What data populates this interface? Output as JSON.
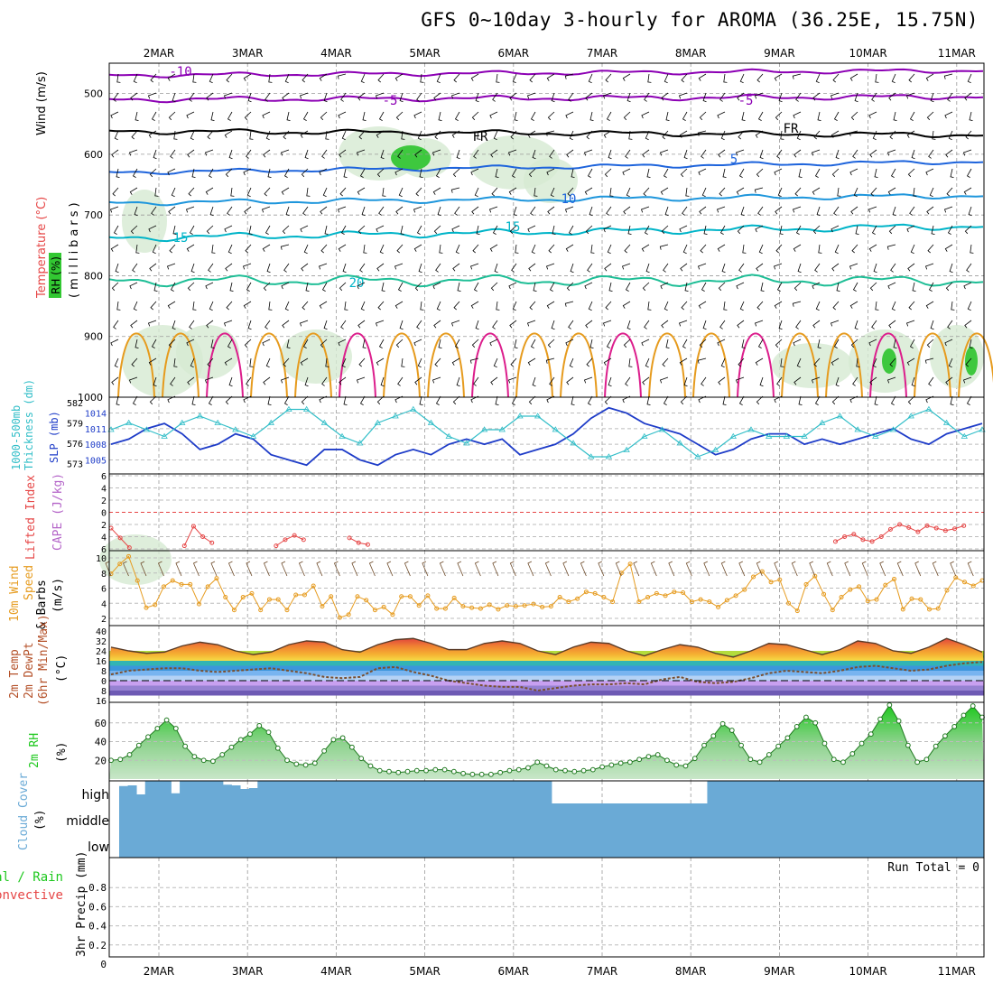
{
  "title": "GFS 0~10day 3-hourly for AROMA (36.25E, 15.75N)",
  "dates": [
    "2MAR",
    "3MAR",
    "4MAR",
    "5MAR",
    "6MAR",
    "7MAR",
    "8MAR",
    "9MAR",
    "10MAR",
    "11MAR"
  ],
  "colors": {
    "contour_temp": "#00b4c8",
    "contour_neg": "#8c00b4",
    "contour_warm": "#e69b1e",
    "slp": "#1e3cc8",
    "thickness": "#32bec8",
    "lifted_index": "#e64646",
    "wind_speed": "#e69b1e",
    "rh_fill": "#32c832",
    "cloud": "#6aaad6"
  },
  "panel_labels": {
    "wind": "Wind (m/s)",
    "temperature": "Temperature (°C)",
    "rh": "RH (%)",
    "millibars": "(millibars)",
    "slp": "SLP (mb)",
    "thickness_1": "1000-500mb",
    "thickness_2": "Thickness (dm)",
    "lifted_index": "Lifted Index",
    "cape": "CAPE (J/kg)",
    "wind10m_1": "10m Wind",
    "wind10m_2": "Speed",
    "wind10m_3": "& Barbs",
    "wind10m_unit": "(m/s)",
    "temp_1": "2m Temp",
    "temp_2": "2m DewPt",
    "temp_3": "(6hr Min/Max)",
    "temp_unit": "(°C)",
    "rh2m": "2m RH",
    "rh2m_unit": "(%)",
    "cloud": "Cloud Cover",
    "cloud_unit": "(%)",
    "precip_1": "Total / Rain",
    "precip_2": "Convective",
    "precip_3": "3hr Precip (mm)",
    "run_total": "Run Total = 0"
  },
  "cloud_levels": [
    "high",
    "middle",
    "low"
  ],
  "upper_air": {
    "pressure_ticks": [
      "500",
      "600",
      "700",
      "800",
      "900",
      "1000"
    ],
    "contour_labels": [
      {
        "text": "-10",
        "series": "neg"
      },
      {
        "text": "-5",
        "series": "neg"
      },
      {
        "text": "-5",
        "series": "neg"
      },
      {
        "text": "FR",
        "series": "frz"
      },
      {
        "text": "FR",
        "series": "frz"
      },
      {
        "text": "5",
        "series": "temp"
      },
      {
        "text": "10",
        "series": "temp"
      },
      {
        "text": "15",
        "series": "temp"
      },
      {
        "text": "15",
        "series": "temp"
      },
      {
        "text": "20",
        "series": "temp"
      }
    ]
  },
  "chart_data": [
    {
      "type": "line",
      "panel": "slp_thickness",
      "series": [
        {
          "name": "SLP (mb)",
          "unit": "mb",
          "values": [
            1008,
            1009,
            1011,
            1012,
            1010,
            1007,
            1008,
            1010,
            1009,
            1006,
            1005,
            1004,
            1007,
            1007,
            1005,
            1004,
            1006,
            1007,
            1006,
            1008,
            1009,
            1008,
            1009,
            1006,
            1007,
            1008,
            1010,
            1013,
            1015,
            1014,
            1012,
            1011,
            1010,
            1008,
            1006,
            1007,
            1009,
            1010,
            1010,
            1008,
            1009,
            1008,
            1009,
            1010,
            1011,
            1009,
            1008,
            1010,
            1011,
            1012
          ]
        },
        {
          "name": "1000-500mb Thickness (dm)",
          "unit": "dm",
          "values": [
            578,
            579,
            578,
            577,
            579,
            580,
            579,
            578,
            577,
            579,
            581,
            581,
            579,
            577,
            576,
            579,
            580,
            581,
            579,
            577,
            576,
            578,
            578,
            580,
            580,
            578,
            576,
            574,
            574,
            575,
            577,
            578,
            576,
            574,
            575,
            577,
            578,
            577,
            577,
            577,
            579,
            580,
            578,
            577,
            578,
            580,
            581,
            579,
            577,
            578
          ]
        }
      ],
      "y_ticks_slp": [
        "1014",
        "1011",
        "1008",
        "1005"
      ],
      "y_ticks_thickness": [
        "582",
        "579",
        "576",
        "573"
      ]
    },
    {
      "type": "line",
      "panel": "lifted_index_cape",
      "y_ticks": [
        "6",
        "4",
        "2",
        "0",
        "-2",
        "-4",
        "-6"
      ],
      "series": [
        {
          "name": "Lifted Index",
          "values": [
            [
              0,
              -2.6
            ],
            [
              1,
              -4.2
            ],
            [
              2,
              -5.8
            ],
            [
              8,
              -5.5
            ],
            [
              9,
              -2.3
            ],
            [
              10,
              -4
            ],
            [
              11,
              -5
            ],
            [
              18,
              -5.5
            ],
            [
              19,
              -4.5
            ],
            [
              20,
              -3.8
            ],
            [
              21,
              -4.5
            ],
            [
              26,
              -4.2
            ],
            [
              27,
              -5
            ],
            [
              28,
              -5.3
            ],
            [
              79,
              -4.8
            ],
            [
              80,
              -4
            ],
            [
              81,
              -3.6
            ],
            [
              82,
              -4.5
            ],
            [
              83,
              -4.8
            ],
            [
              84,
              -4
            ],
            [
              85,
              -2.8
            ],
            [
              86,
              -2
            ],
            [
              87,
              -2.5
            ],
            [
              88,
              -3.2
            ],
            [
              89,
              -2.2
            ],
            [
              90,
              -2.6
            ],
            [
              91,
              -3
            ],
            [
              92,
              -2.7
            ],
            [
              93,
              -2.2
            ]
          ]
        }
      ]
    },
    {
      "type": "line",
      "panel": "wind10m",
      "y_ticks": [
        "10",
        "8",
        "6",
        "4",
        "2"
      ],
      "series": [
        {
          "name": "10m Wind Speed",
          "unit": "m/s",
          "values": [
            7.9,
            9.2,
            10.2,
            7,
            3.4,
            3.8,
            6.2,
            7,
            6.5,
            6.5,
            3.9,
            6.2,
            7.3,
            4.8,
            3.1,
            4.8,
            5.3,
            3.1,
            4.5,
            4.5,
            3.1,
            5.1,
            5.1,
            6.3,
            3.6,
            4.9,
            2.1,
            2.5,
            4.9,
            4.4,
            3.1,
            3.5,
            2.5,
            4.9,
            4.9,
            3.7,
            5,
            3.3,
            3.3,
            4.7,
            3.6,
            3.4,
            3.3,
            3.8,
            3.2,
            3.7,
            3.6,
            3.7,
            3.9,
            3.5,
            3.6,
            4.8,
            4.2,
            4.6,
            5.5,
            5.3,
            4.8,
            4.2,
            8,
            9.2,
            4.2,
            4.8,
            5.3,
            5,
            5.5,
            5.4,
            4.2,
            4.5,
            4.2,
            3.5,
            4.4,
            5,
            5.8,
            7.5,
            8.2,
            6.8,
            7.1,
            4,
            3,
            6.5,
            7.6,
            5.2,
            3.1,
            4.8,
            5.8,
            6.2,
            4.3,
            4.5,
            6.4,
            7.2,
            3.2,
            4.6,
            4.5,
            3.2,
            3.3,
            5.7,
            7.4,
            6.8,
            6.3,
            7
          ]
        }
      ]
    },
    {
      "type": "area",
      "panel": "temp2m",
      "y_ticks": [
        "40",
        "32",
        "24",
        "16",
        "8",
        "0",
        "-8",
        "-16"
      ],
      "series": [
        {
          "name": "2m Temp",
          "unit": "°C",
          "values": [
            27,
            24,
            22,
            23,
            28,
            31,
            29,
            24,
            21,
            23,
            29,
            32,
            31,
            25,
            23,
            29,
            33,
            34,
            30,
            25,
            25,
            30,
            32,
            30,
            24,
            21,
            27,
            31,
            30,
            24,
            20,
            25,
            29,
            27,
            22,
            19,
            24,
            30,
            29,
            25,
            21,
            25,
            32,
            30,
            24,
            22,
            27,
            34,
            29,
            23
          ]
        },
        {
          "name": "2m DewPt",
          "unit": "°C",
          "values": [
            5,
            8,
            9,
            10,
            10,
            8,
            7,
            8,
            9,
            10,
            8,
            6,
            3,
            2,
            3,
            10,
            11,
            7,
            4,
            0,
            -2,
            -4,
            -5,
            -5,
            -8,
            -6,
            -4,
            -3,
            -3,
            -2,
            -3,
            1,
            3,
            -1,
            -2,
            -1,
            2,
            6,
            8,
            7,
            6,
            8,
            11,
            12,
            10,
            8,
            9,
            12,
            14,
            15
          ]
        }
      ]
    },
    {
      "type": "area",
      "panel": "rh2m",
      "y_ticks": [
        "60",
        "40",
        "20"
      ],
      "series": [
        {
          "name": "2m RH",
          "unit": "%",
          "values": [
            20,
            21,
            26,
            36,
            45,
            54,
            63,
            54,
            35,
            24,
            20,
            19,
            26,
            34,
            42,
            48,
            57,
            50,
            33,
            20,
            16,
            15,
            17,
            30,
            42,
            44,
            34,
            22,
            14,
            9,
            8,
            7,
            8,
            9,
            9,
            10,
            10,
            8,
            6,
            5,
            5,
            5,
            7,
            9,
            10,
            12,
            18,
            14,
            10,
            9,
            8,
            9,
            10,
            13,
            15,
            17,
            18,
            21,
            24,
            26,
            20,
            15,
            14,
            22,
            36,
            46,
            59,
            52,
            36,
            21,
            18,
            26,
            35,
            44,
            56,
            66,
            60,
            38,
            21,
            18,
            27,
            38,
            48,
            64,
            79,
            62,
            36,
            18,
            21,
            35,
            46,
            56,
            68,
            78,
            66
          ]
        }
      ]
    },
    {
      "type": "bar",
      "panel": "cloud_cover",
      "series": [
        {
          "name": "high cloud",
          "unit": "%",
          "values": [
            77,
            80,
            40,
            100,
            100,
            100,
            45,
            100,
            100,
            100,
            100,
            100,
            83,
            80,
            64,
            68,
            100,
            100,
            100,
            100,
            100,
            100,
            100,
            100,
            100,
            100,
            100,
            100,
            100,
            100,
            100,
            100,
            100,
            100,
            100,
            100,
            100,
            100,
            100,
            100,
            100,
            100,
            100,
            100,
            100,
            100,
            100,
            100,
            100,
            100,
            0,
            0,
            0,
            0,
            0,
            0,
            0,
            0,
            0,
            0,
            0,
            0,
            0,
            0,
            0,
            0,
            0,
            0,
            100,
            100,
            100,
            100,
            100,
            100,
            100,
            100,
            100,
            100,
            100,
            100,
            100,
            100,
            100,
            100,
            100,
            100,
            100,
            100,
            100,
            100,
            100,
            100,
            100,
            100,
            100,
            100,
            100,
            100,
            100,
            100
          ]
        },
        {
          "name": "middle cloud",
          "unit": "%",
          "values": []
        },
        {
          "name": "low cloud",
          "unit": "%",
          "values": []
        }
      ]
    },
    {
      "type": "line",
      "panel": "precip3h",
      "y_ticks": [
        "0.8",
        "0.6",
        "0.4",
        "0.2",
        "0"
      ],
      "series": [
        {
          "name": "3hr Precip",
          "unit": "mm",
          "values": []
        }
      ]
    }
  ]
}
